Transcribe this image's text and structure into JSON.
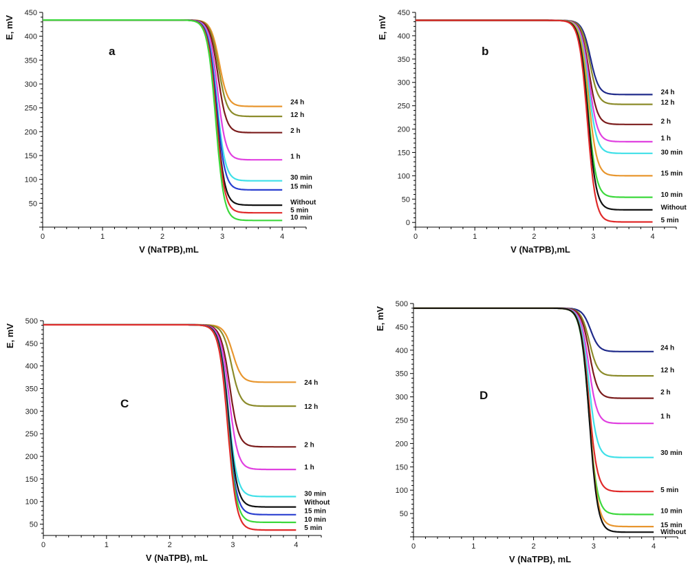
{
  "chart_data": [
    {
      "type": "line",
      "panel_label": "a",
      "xlabel": "V (NaTPB),mL",
      "ylabel": "E, mV",
      "xlim": [
        0,
        4.4
      ],
      "ylim": [
        0,
        450
      ],
      "xticks": [
        0,
        1,
        2,
        3,
        4
      ],
      "yticks": [
        50,
        100,
        150,
        200,
        250,
        300,
        350,
        400,
        450
      ],
      "grid": false,
      "start": 434,
      "series": [
        {
          "name": "24 h",
          "color": "#E8962E",
          "end": 253,
          "mid": 2.95
        },
        {
          "name": "12 h",
          "color": "#8B8B2A",
          "end": 232,
          "mid": 2.94
        },
        {
          "name": "2 h",
          "color": "#7B1C1C",
          "end": 198,
          "mid": 2.93
        },
        {
          "name": "1 h",
          "color": "#E040E0",
          "end": 141,
          "mid": 2.92
        },
        {
          "name": "30 min",
          "color": "#3FE0E8",
          "end": 97,
          "mid": 2.91
        },
        {
          "name": "15 min",
          "color": "#2A3FD0",
          "end": 78,
          "mid": 2.905
        },
        {
          "name": "Without",
          "color": "#111111",
          "end": 46,
          "mid": 2.9
        },
        {
          "name": "5 min",
          "color": "#E02A2A",
          "end": 30,
          "mid": 2.9
        },
        {
          "name": "10 min",
          "color": "#3CD83C",
          "end": 14,
          "mid": 2.89
        }
      ]
    },
    {
      "type": "line",
      "panel_label": "b",
      "xlabel": "V (NaTPB),mL",
      "ylabel": "E, mV",
      "xlim": [
        0,
        4.4
      ],
      "ylim": [
        -10,
        450
      ],
      "xticks": [
        0,
        1,
        2,
        3,
        4
      ],
      "yticks": [
        0,
        50,
        100,
        150,
        200,
        250,
        300,
        350,
        400,
        450
      ],
      "grid": false,
      "start": 433,
      "series": [
        {
          "name": "24 h",
          "color": "#1F2A8A",
          "end": 274,
          "mid": 2.95
        },
        {
          "name": "12 h",
          "color": "#8B8B2A",
          "end": 253,
          "mid": 2.94
        },
        {
          "name": "2 h",
          "color": "#7B1C1C",
          "end": 210,
          "mid": 2.93
        },
        {
          "name": "1 h",
          "color": "#E040E0",
          "end": 173,
          "mid": 2.93
        },
        {
          "name": "30 min",
          "color": "#3FE0E8",
          "end": 148,
          "mid": 2.92
        },
        {
          "name": "15 min",
          "color": "#E8962E",
          "end": 100,
          "mid": 2.92
        },
        {
          "name": "10 min",
          "color": "#3CD83C",
          "end": 54,
          "mid": 2.91
        },
        {
          "name": "Without",
          "color": "#111111",
          "end": 27,
          "mid": 2.91
        },
        {
          "name": "5 min",
          "color": "#E02A2A",
          "end": 1,
          "mid": 2.9
        }
      ]
    },
    {
      "type": "line",
      "panel_label": "C",
      "xlabel": "V (NaTPB), mL",
      "ylabel": "E, mV",
      "xlim": [
        0,
        4.4
      ],
      "ylim": [
        25,
        500
      ],
      "xticks": [
        0,
        1,
        2,
        3,
        4
      ],
      "yticks": [
        50,
        100,
        150,
        200,
        250,
        300,
        350,
        400,
        450,
        500
      ],
      "grid": false,
      "start": 491,
      "series": [
        {
          "name": "24 h",
          "color": "#E8962E",
          "end": 364,
          "mid": 3.0
        },
        {
          "name": "12 h",
          "color": "#8B8B2A",
          "end": 311,
          "mid": 2.98
        },
        {
          "name": "2 h",
          "color": "#7B1C1C",
          "end": 221,
          "mid": 2.95
        },
        {
          "name": "1 h",
          "color": "#E040E0",
          "end": 171,
          "mid": 2.94
        },
        {
          "name": "30 min",
          "color": "#3FE0E8",
          "end": 111,
          "mid": 2.93
        },
        {
          "name": "Without",
          "color": "#111111",
          "end": 88,
          "mid": 2.93
        },
        {
          "name": "15 min",
          "color": "#2A3FD0",
          "end": 71,
          "mid": 2.92
        },
        {
          "name": "10 min",
          "color": "#3CD83C",
          "end": 54,
          "mid": 2.92
        },
        {
          "name": "5 min",
          "color": "#E02A2A",
          "end": 37,
          "mid": 2.92
        }
      ]
    },
    {
      "type": "line",
      "panel_label": "D",
      "xlabel": "V (NaTPB), mL",
      "ylabel": "E, mV",
      "xlim": [
        0,
        4.4
      ],
      "ylim": [
        0,
        500
      ],
      "xticks": [
        0,
        1,
        2,
        3,
        4
      ],
      "yticks": [
        50,
        100,
        150,
        200,
        250,
        300,
        350,
        400,
        450,
        500
      ],
      "grid": false,
      "start": 490,
      "series": [
        {
          "name": "24 h",
          "color": "#1F2A8A",
          "end": 397,
          "mid": 2.95
        },
        {
          "name": "12 h",
          "color": "#8B8B2A",
          "end": 345,
          "mid": 2.93
        },
        {
          "name": "2 h",
          "color": "#7B1C1C",
          "end": 297,
          "mid": 2.93
        },
        {
          "name": "1 h",
          "color": "#E040E0",
          "end": 243,
          "mid": 2.92
        },
        {
          "name": "30 min",
          "color": "#3FE0E8",
          "end": 170,
          "mid": 2.92
        },
        {
          "name": "5 min",
          "color": "#E02A2A",
          "end": 97,
          "mid": 2.92
        },
        {
          "name": "10 min",
          "color": "#3CD83C",
          "end": 48,
          "mid": 2.92
        },
        {
          "name": "15 min",
          "color": "#E8962E",
          "end": 22,
          "mid": 2.93
        },
        {
          "name": "Without",
          "color": "#111111",
          "end": 10,
          "mid": 2.93
        }
      ]
    }
  ]
}
